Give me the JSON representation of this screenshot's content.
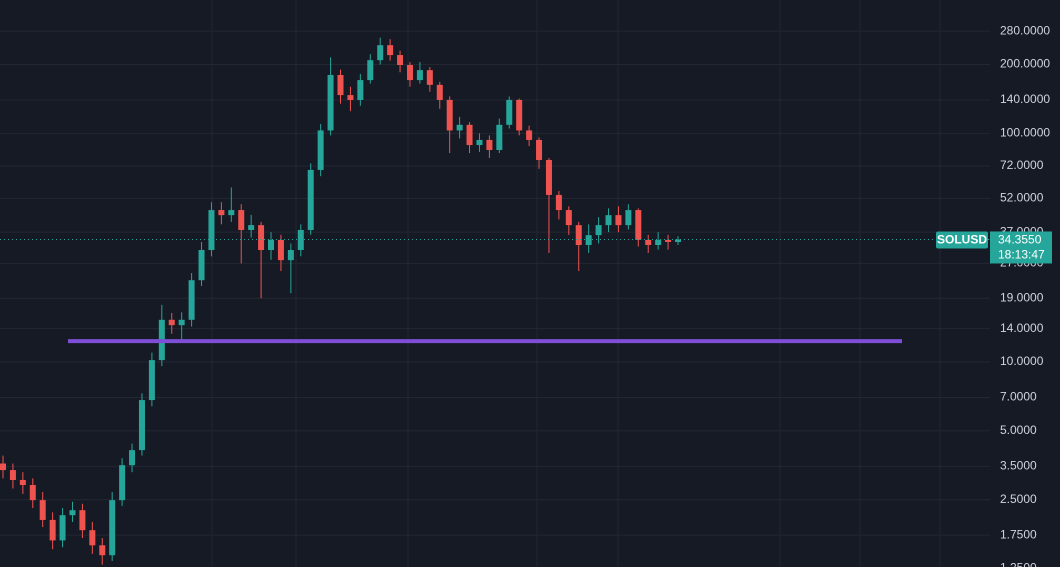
{
  "chart_data": {
    "type": "candlestick",
    "symbol": "SOLUSD",
    "countdown": "18:13:47",
    "log_scale": true,
    "grid": true,
    "up_color": "#26a69a",
    "down_color": "#ef5350",
    "open": [
      3.6,
      3.37,
      3.05,
      2.9,
      2.49,
      2.04,
      1.66,
      2.14,
      2.25,
      1.84,
      1.58,
      1.43,
      2.49,
      3.54,
      4.12,
      6.82,
      10.2,
      15.3,
      14.5,
      15.3,
      22.8,
      30.9,
      46.2,
      43.9,
      46.2,
      37.8,
      39.7,
      30.9,
      34.2,
      27.9,
      30.9,
      37.8,
      69.2,
      103,
      180,
      147,
      140,
      171,
      209,
      243,
      220,
      199,
      171,
      189,
      163,
      140,
      103,
      109,
      88.9,
      93.6,
      84.6,
      109,
      140,
      103,
      93.6,
      76.5,
      53.8,
      46.2,
      39.7,
      32.5,
      35.9,
      39.7,
      43.9,
      39.7,
      46.2,
      34.2,
      32.5,
      34.2,
      33.5
    ],
    "high": [
      3.9,
      3.6,
      3.3,
      3.1,
      2.7,
      2.2,
      2.3,
      2.45,
      2.4,
      2.0,
      1.7,
      2.7,
      3.8,
      4.4,
      7.3,
      11,
      17.8,
      16.4,
      16.5,
      24.5,
      33.5,
      50,
      50,
      58,
      49,
      44,
      41,
      37,
      36,
      33,
      40,
      74,
      110,
      215,
      190,
      160,
      182,
      222,
      262,
      258,
      230,
      205,
      205,
      195,
      168,
      145,
      118,
      112,
      100,
      98,
      116,
      145,
      142,
      108,
      96,
      78,
      56,
      48,
      41,
      40,
      43,
      47,
      48,
      49,
      47,
      36,
      37,
      36,
      35.5
    ],
    "low": [
      3.1,
      2.8,
      2.65,
      2.3,
      1.9,
      1.52,
      1.55,
      2.0,
      1.7,
      1.45,
      1.3,
      1.35,
      2.35,
      3.3,
      3.9,
      6.4,
      9.6,
      13.3,
      12.5,
      14.3,
      21.5,
      29,
      40,
      41,
      27,
      35,
      19,
      28,
      25,
      20,
      29,
      36,
      65,
      98,
      135,
      125,
      132,
      165,
      200,
      208,
      185,
      160,
      165,
      152,
      128,
      82,
      95,
      82,
      83,
      78,
      82,
      105,
      98,
      88,
      70,
      30,
      42,
      36,
      25,
      30,
      33,
      37,
      37,
      38,
      32,
      30,
      31,
      31,
      32.5
    ],
    "close": [
      3.37,
      3.05,
      2.9,
      2.49,
      2.04,
      1.66,
      2.14,
      2.25,
      1.84,
      1.58,
      1.43,
      2.49,
      3.54,
      4.12,
      6.82,
      10.2,
      15.3,
      14.5,
      15.3,
      22.8,
      30.9,
      46.2,
      43.9,
      46.2,
      37.8,
      39.7,
      30.9,
      34.2,
      27.9,
      30.9,
      37.8,
      69.2,
      103,
      180,
      147,
      140,
      171,
      209,
      243,
      220,
      199,
      171,
      189,
      163,
      140,
      103,
      109,
      88.9,
      93.6,
      84.6,
      109,
      140,
      103,
      93.6,
      76.5,
      53.8,
      46.2,
      39.7,
      32.5,
      35.9,
      39.7,
      43.9,
      39.7,
      46.2,
      34.2,
      32.5,
      34.2,
      33.5,
      34.355
    ],
    "last_price": {
      "value": 34.355,
      "label": "34.3550"
    },
    "horizontal_line": {
      "value": 12.35,
      "color": "#7e4fd6"
    },
    "ylim": [
      1.27,
      383
    ],
    "yticks": [
      {
        "value": 280,
        "label": "280.0000"
      },
      {
        "value": 200,
        "label": "200.0000"
      },
      {
        "value": 140,
        "label": "140.0000"
      },
      {
        "value": 100,
        "label": "100.0000"
      },
      {
        "value": 72,
        "label": "72.0000"
      },
      {
        "value": 52,
        "label": "52.0000"
      },
      {
        "value": 37,
        "label": "37.0000"
      },
      {
        "value": 27,
        "label": "27.0000"
      },
      {
        "value": 19,
        "label": "19.0000"
      },
      {
        "value": 14,
        "label": "14.0000"
      },
      {
        "value": 10,
        "label": "10.0000"
      },
      {
        "value": 7,
        "label": "7.0000"
      },
      {
        "value": 5,
        "label": "5.0000"
      },
      {
        "value": 3.5,
        "label": "3.5000"
      },
      {
        "value": 2.5,
        "label": "2.5000"
      },
      {
        "value": 1.75,
        "label": "1.7500"
      },
      {
        "value": 1.25,
        "label": "1.2500"
      }
    ]
  }
}
